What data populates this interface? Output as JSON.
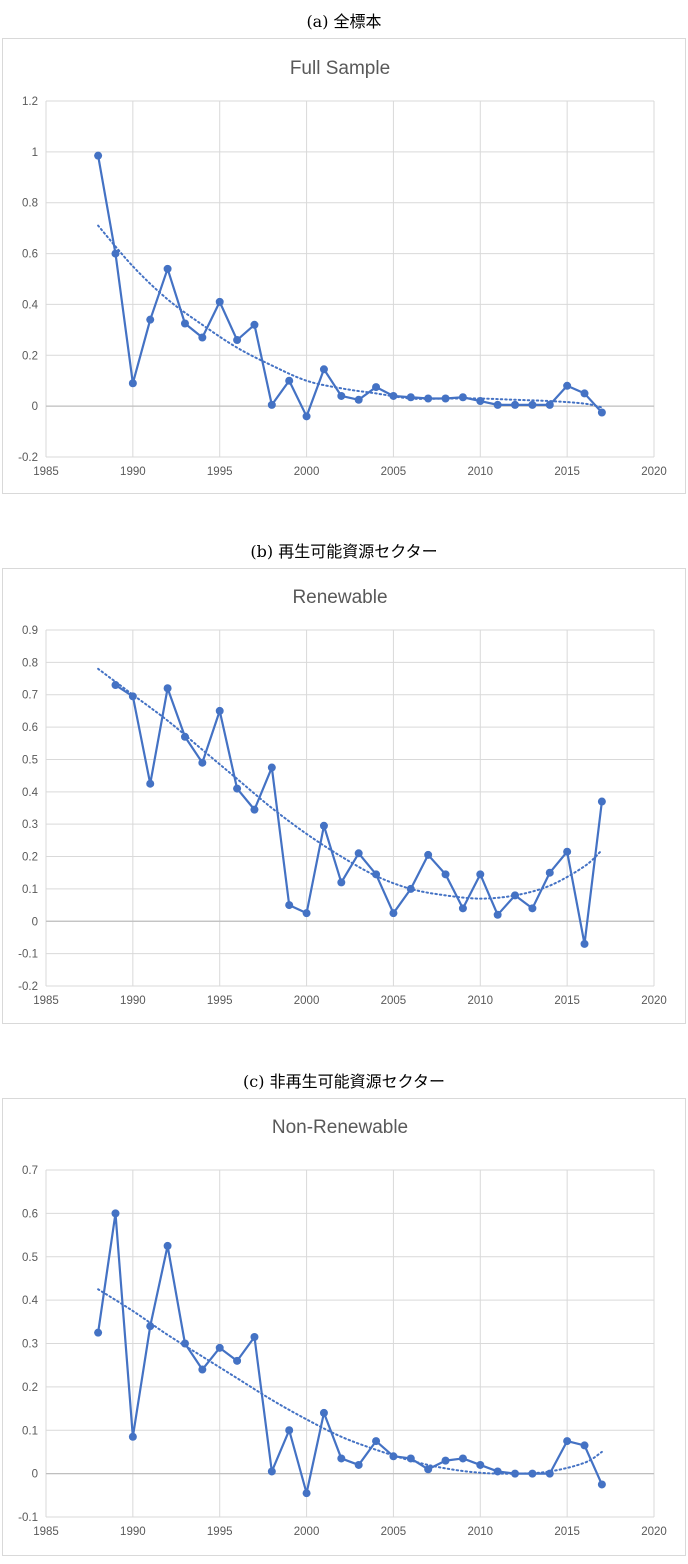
{
  "panels": [
    {
      "heading": "(a) 全標本"
    },
    {
      "heading": "(b) 再生可能資源セクター"
    },
    {
      "heading": "(c) 非再生可能資源セクター"
    }
  ],
  "colors": {
    "series": "#4472c4",
    "grid": "#d9d9d9",
    "axis": "#bfbfbf",
    "text": "#595959"
  },
  "chart_data": [
    {
      "type": "line",
      "title": "Full Sample",
      "xlim": [
        1985,
        2020
      ],
      "xticks": [
        1985,
        1990,
        1995,
        2000,
        2005,
        2010,
        2015,
        2020
      ],
      "ylim": [
        -0.2,
        1.2
      ],
      "yticks": [
        -0.2,
        0,
        0.2,
        0.4,
        0.6,
        0.8,
        1,
        1.2
      ],
      "grid": true,
      "trendline": "polynomial-dotted",
      "trend": [
        [
          1988,
          0.71
        ],
        [
          1990,
          0.55
        ],
        [
          1992,
          0.42
        ],
        [
          1994,
          0.32
        ],
        [
          1996,
          0.23
        ],
        [
          1998,
          0.16
        ],
        [
          2000,
          0.1
        ],
        [
          2002,
          0.07
        ],
        [
          2004,
          0.05
        ],
        [
          2006,
          0.03
        ],
        [
          2008,
          0.03
        ],
        [
          2010,
          0.03
        ],
        [
          2012,
          0.025
        ],
        [
          2014,
          0.02
        ],
        [
          2016,
          0.01
        ],
        [
          2017,
          -0.005
        ]
      ],
      "x": [
        1988,
        1989,
        1990,
        1991,
        1992,
        1993,
        1994,
        1995,
        1996,
        1997,
        1998,
        1999,
        2000,
        2001,
        2002,
        2003,
        2004,
        2005,
        2006,
        2007,
        2008,
        2009,
        2010,
        2011,
        2012,
        2013,
        2014,
        2015,
        2016,
        2017
      ],
      "values": [
        0.985,
        0.6,
        0.09,
        0.34,
        0.54,
        0.325,
        0.27,
        0.41,
        0.26,
        0.32,
        0.005,
        0.1,
        -0.04,
        0.145,
        0.04,
        0.025,
        0.075,
        0.04,
        0.035,
        0.03,
        0.03,
        0.035,
        0.02,
        0.005,
        0.005,
        0.005,
        0.005,
        0.08,
        0.05,
        -0.025
      ]
    },
    {
      "type": "line",
      "title": "Renewable",
      "xlim": [
        1985,
        2020
      ],
      "xticks": [
        1985,
        1990,
        1995,
        2000,
        2005,
        2010,
        2015,
        2020
      ],
      "ylim": [
        -0.2,
        0.9
      ],
      "yticks": [
        -0.2,
        -0.1,
        0,
        0.1,
        0.2,
        0.3,
        0.4,
        0.5,
        0.6,
        0.7,
        0.8,
        0.9
      ],
      "grid": true,
      "trendline": "polynomial-dotted",
      "trend": [
        [
          1988,
          0.78
        ],
        [
          1990,
          0.7
        ],
        [
          1992,
          0.62
        ],
        [
          1994,
          0.53
        ],
        [
          1996,
          0.44
        ],
        [
          1998,
          0.35
        ],
        [
          2000,
          0.27
        ],
        [
          2002,
          0.2
        ],
        [
          2004,
          0.14
        ],
        [
          2006,
          0.1
        ],
        [
          2008,
          0.08
        ],
        [
          2010,
          0.07
        ],
        [
          2012,
          0.08
        ],
        [
          2014,
          0.11
        ],
        [
          2016,
          0.17
        ],
        [
          2017,
          0.22
        ]
      ],
      "x": [
        1989,
        1990,
        1991,
        1992,
        1993,
        1994,
        1995,
        1996,
        1997,
        1998,
        1999,
        2000,
        2001,
        2002,
        2003,
        2004,
        2005,
        2006,
        2007,
        2008,
        2009,
        2010,
        2011,
        2012,
        2013,
        2014,
        2015,
        2016,
        2017
      ],
      "values": [
        0.73,
        0.695,
        0.425,
        0.72,
        0.57,
        0.49,
        0.65,
        0.41,
        0.345,
        0.475,
        0.05,
        0.025,
        0.295,
        0.12,
        0.21,
        0.145,
        0.025,
        0.1,
        0.205,
        0.145,
        0.04,
        0.145,
        0.02,
        0.08,
        0.04,
        0.15,
        0.215,
        -0.07,
        0.37
      ]
    },
    {
      "type": "line",
      "title": "Non-Renewable",
      "xlim": [
        1985,
        2020
      ],
      "xticks": [
        1985,
        1990,
        1995,
        2000,
        2005,
        2010,
        2015,
        2020
      ],
      "ylim": [
        -0.1,
        0.7
      ],
      "yticks": [
        -0.1,
        0,
        0.1,
        0.2,
        0.3,
        0.4,
        0.5,
        0.6,
        0.7
      ],
      "grid": true,
      "trendline": "polynomial-dotted",
      "trend": [
        [
          1988,
          0.425
        ],
        [
          1990,
          0.375
        ],
        [
          1992,
          0.32
        ],
        [
          1994,
          0.27
        ],
        [
          1996,
          0.22
        ],
        [
          1998,
          0.17
        ],
        [
          2000,
          0.125
        ],
        [
          2002,
          0.085
        ],
        [
          2004,
          0.055
        ],
        [
          2006,
          0.03
        ],
        [
          2008,
          0.012
        ],
        [
          2010,
          0.002
        ],
        [
          2012,
          0.0
        ],
        [
          2014,
          0.005
        ],
        [
          2016,
          0.025
        ],
        [
          2017,
          0.05
        ]
      ],
      "x": [
        1988,
        1989,
        1990,
        1991,
        1992,
        1993,
        1994,
        1995,
        1996,
        1997,
        1998,
        1999,
        2000,
        2001,
        2002,
        2003,
        2004,
        2005,
        2006,
        2007,
        2008,
        2009,
        2010,
        2011,
        2012,
        2013,
        2014,
        2015,
        2016,
        2017
      ],
      "values": [
        0.325,
        0.6,
        0.085,
        0.34,
        0.525,
        0.3,
        0.24,
        0.29,
        0.26,
        0.315,
        0.005,
        0.1,
        -0.045,
        0.14,
        0.035,
        0.02,
        0.075,
        0.04,
        0.035,
        0.01,
        0.03,
        0.035,
        0.02,
        0.005,
        0.0,
        0.0,
        0.0,
        0.075,
        0.065,
        -0.025
      ]
    }
  ]
}
